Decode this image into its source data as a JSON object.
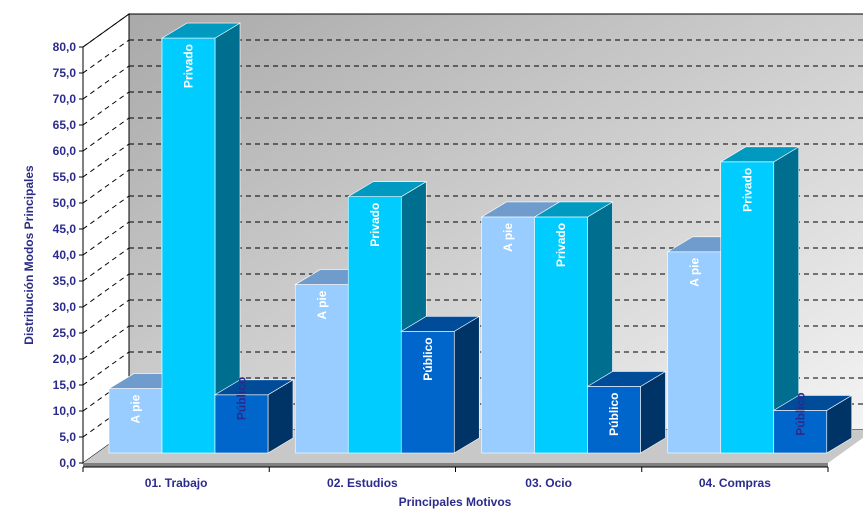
{
  "chart_data": {
    "type": "bar",
    "title": "",
    "xlabel": "Principales Motivos",
    "ylabel": "Distribución Modos Principales",
    "categories": [
      "01. Trabajo",
      "02. Estudios",
      "03. Ocio",
      "04. Compras"
    ],
    "series": [
      {
        "name": "A pie",
        "values": [
          12.2,
          32.2,
          45.2,
          38.5
        ]
      },
      {
        "name": "Privado",
        "values": [
          79.6,
          49.1,
          45.2,
          55.8
        ]
      },
      {
        "name": "Público",
        "values": [
          11.0,
          23.2,
          12.6,
          8.0
        ]
      }
    ],
    "ylim": [
      0,
      80
    ],
    "yticks": [
      "0,0",
      "5,0",
      "10,0",
      "15,0",
      "20,0",
      "25,0",
      "30,0",
      "35,0",
      "40,0",
      "45,0",
      "50,0",
      "55,0",
      "60,0",
      "65,0",
      "70,0",
      "75,0",
      "80,0"
    ],
    "grid": true,
    "legend": "none",
    "colors": {
      "A pie": {
        "front": "#99ccff",
        "top": "#6f9ccc",
        "side": "#5b87b8",
        "label": "#ffffff"
      },
      "Privado": {
        "front": "#00ccff",
        "top": "#0099c0",
        "side": "#006f8f",
        "label": "#ffffff"
      },
      "Público": {
        "front": "#0066cc",
        "top": "#004c99",
        "side": "#003366",
        "label": "#ffffff",
        "label_above": "#2b2b8c"
      },
      "text": "#2b2b8c",
      "wall_light": "#f4f4f4",
      "wall_dark": "#a9a9a9"
    }
  }
}
